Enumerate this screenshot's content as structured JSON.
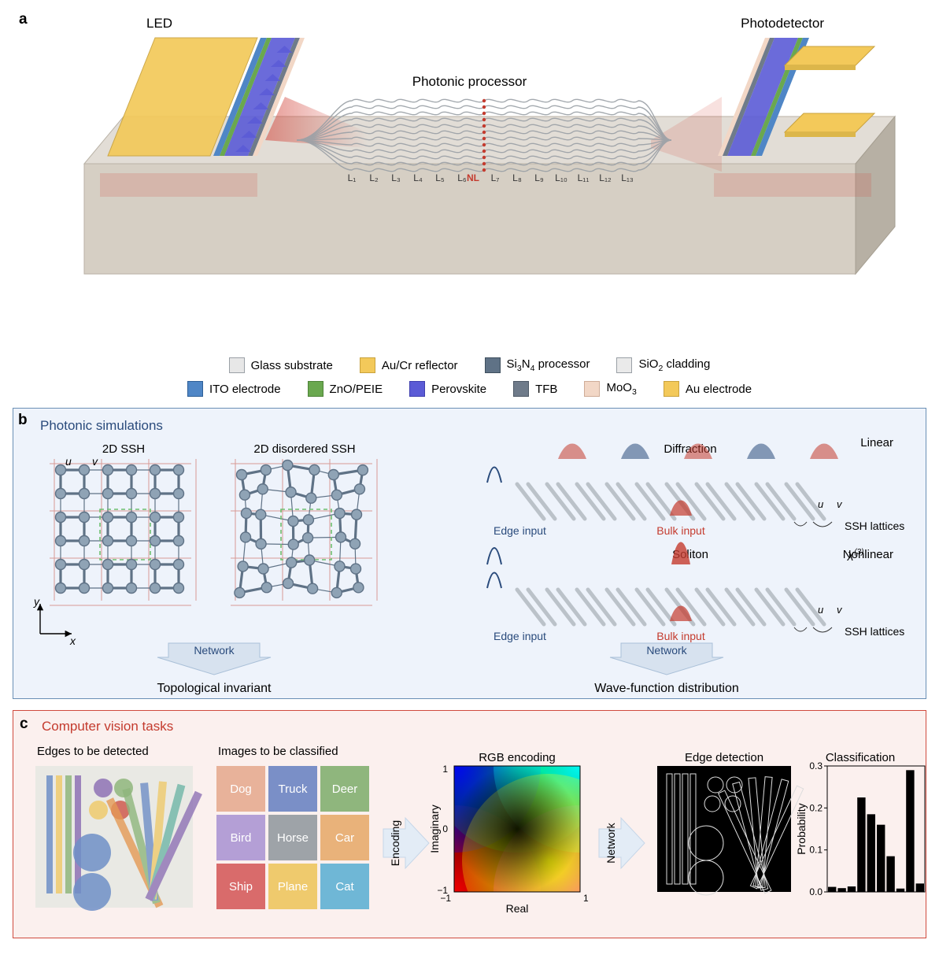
{
  "panel_a": {
    "label": "a",
    "header_left": "LED",
    "header_mid": "Photonic processor",
    "header_right": "Photodetector",
    "layer_labels": [
      "L₁",
      "L₂",
      "L₃",
      "L₄",
      "L₅",
      "L₆",
      "L₇",
      "L₈",
      "L₉",
      "L₁₀",
      "L₁₁",
      "L₁₂",
      "L₁₃"
    ],
    "nl_label": "NL",
    "schematic": {
      "glass_top": "#d6cfc4",
      "glass_side": "#b7b0a4",
      "processor_top": "#e2ddd6",
      "au_reflector": "#f3c95a",
      "au_electrode": "#f3c95a",
      "ito": "#4f86c6",
      "zno": "#6aa84f",
      "perovskite": "#5b5bd6",
      "tfb": "#6f7b8a",
      "moo3": "#f2d7c6",
      "si3n4": "#5f7286",
      "sio2": "#d8d8d8",
      "light_red": "rgba(210,70,60,0.55)",
      "light_red_faint": "rgba(210,70,60,0.18)",
      "waveguide": "#9aa0a6"
    },
    "legend": [
      {
        "swatch": "#e7e7e7",
        "border": "#9aa0a6",
        "label": "Glass substrate"
      },
      {
        "swatch": "#f3c95a",
        "border": "#c9a23d",
        "label": "Au/Cr reflector"
      },
      {
        "swatch": "#5f7286",
        "border": "#3f4f5e",
        "label_html": "Si<sub>3</sub>N<sub>4</sub> processor"
      },
      {
        "swatch": "#eaeaea",
        "border": "#9aa0a6",
        "label_html": "SiO<sub>2</sub> cladding"
      },
      {
        "swatch": "#4f86c6",
        "border": "#2e5f97",
        "label": "ITO electrode"
      },
      {
        "swatch": "#6aa84f",
        "border": "#4e8338",
        "label": "ZnO/PEIE"
      },
      {
        "swatch": "#5b5bd6",
        "border": "#3f3fae",
        "label": "Perovskite"
      },
      {
        "swatch": "#6f7b8a",
        "border": "#4e5966",
        "label": "TFB"
      },
      {
        "swatch": "#f2d7c6",
        "border": "#ceac97",
        "label_html": "MoO<sub>3</sub>"
      },
      {
        "swatch": "#f3c95a",
        "border": "#c9a23d",
        "label": "Au electrode"
      }
    ]
  },
  "panel_b": {
    "label": "b",
    "title": "Photonic simulations",
    "ssh_title": "2D SSH",
    "ssh_dis_title": "2D disordered SSH",
    "axis_x": "x",
    "axis_y": "y",
    "u_label": "u",
    "v_label": "v",
    "network_label": "Network",
    "bottom_left": "Topological invariant",
    "bottom_right": "Wave-function distribution",
    "diffraction": "Diffraction",
    "soliton": "Soliton",
    "linear": "Linear",
    "nonlinear": "Nonlinear",
    "chi3": "χ",
    "edge_input": "Edge input",
    "bulk_input": "Bulk input",
    "ssh_lattices": "SSH lattices",
    "colors": {
      "node": "#8fa3b5",
      "node_edge": "#5f7286",
      "grid": "#d89a94",
      "unit_cell": "#6fbf6f",
      "red": "#c43b2e",
      "blue": "#2a4b7c",
      "wg": "#b6bdc4",
      "arrow_bg": "#d7e2ef",
      "arrow_edge": "#aac0d8"
    }
  },
  "panel_c": {
    "label": "c",
    "title": "Computer vision tasks",
    "edges_label": "Edges to be detected",
    "images_label": "Images to be classified",
    "encoding": "Encoding",
    "rgb_enc": "RGB encoding",
    "real": "Real",
    "imag": "Imaginary",
    "edge_det": "Edge detection",
    "classif": "Classification",
    "prob": "Probability",
    "network": "Network",
    "class_tiles": [
      {
        "t": "Dog",
        "c": "#e8b29a"
      },
      {
        "t": "Truck",
        "c": "#7a8fc7"
      },
      {
        "t": "Deer",
        "c": "#8fb67d"
      },
      {
        "t": "Bird",
        "c": "#b49fd6"
      },
      {
        "t": "Horse",
        "c": "#9ea3a8"
      },
      {
        "t": "Car",
        "c": "#e9b27a"
      },
      {
        "t": "Ship",
        "c": "#d96b6b"
      },
      {
        "t": "Plane",
        "c": "#efca6d"
      },
      {
        "t": "Cat",
        "c": "#6fb7d6"
      }
    ],
    "axis_ticks": [
      "-1",
      "1"
    ],
    "axis_tick_mid": "0",
    "classif_chart": {
      "ylim": [
        0,
        0.3
      ],
      "ytick_step": 0.1,
      "n_bars": 10,
      "values": [
        0.012,
        0.009,
        0.013,
        0.225,
        0.185,
        0.16,
        0.085,
        0.008,
        0.29,
        0.02
      ],
      "bar_color": "#000000",
      "axis_color": "#000000"
    },
    "shapes_colors": {
      "bg": "#e9e9e4",
      "purple": "#8e72b5",
      "green": "#8fb67d",
      "yellow": "#efca6d",
      "red": "#cf5b4f",
      "orange": "#e59a55",
      "blue": "#6f8fc7",
      "teal": "#6fb7a7"
    }
  }
}
